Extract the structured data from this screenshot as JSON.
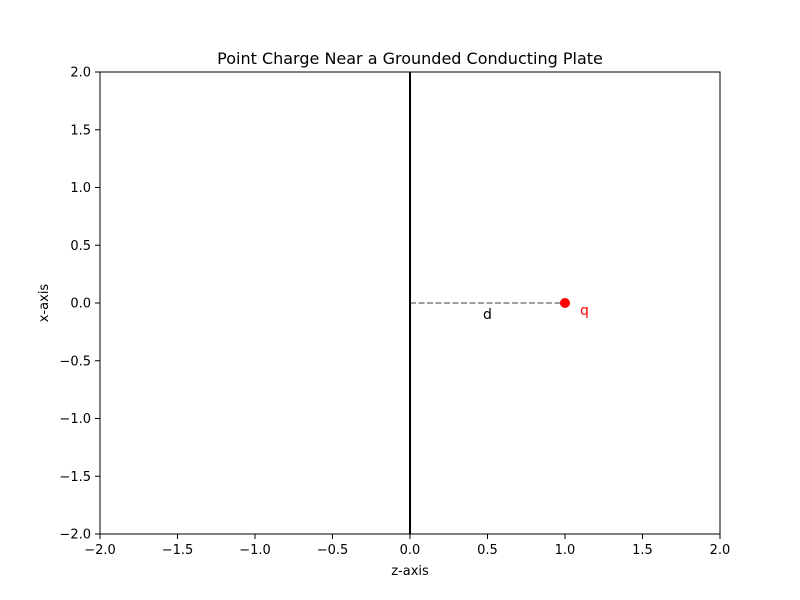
{
  "chart_data": {
    "type": "scatter",
    "title": "Point Charge Near a Grounded Conducting Plate",
    "xlabel": "z-axis",
    "ylabel": "x-axis",
    "xlim": [
      -2.0,
      2.0
    ],
    "ylim": [
      -2.0,
      2.0
    ],
    "grid": false,
    "xticks": [
      -2.0,
      -1.5,
      -1.0,
      -0.5,
      0.0,
      0.5,
      1.0,
      1.5,
      2.0
    ],
    "yticks": [
      -2.0,
      -1.5,
      -1.0,
      -0.5,
      0.0,
      0.5,
      1.0,
      1.5,
      2.0
    ],
    "xtick_labels": [
      "−2.0",
      "−1.5",
      "−1.0",
      "−0.5",
      "0.0",
      "0.5",
      "1.0",
      "1.5",
      "2.0"
    ],
    "ytick_labels": [
      "−2.0",
      "−1.5",
      "−1.0",
      "−0.5",
      "0.0",
      "0.5",
      "1.0",
      "1.5",
      "2.0"
    ],
    "plate": {
      "z": 0.0,
      "x_range": [
        -2.0,
        2.0
      ],
      "color": "#000000"
    },
    "charge": {
      "z": 1.0,
      "x": 0.0,
      "label": "q",
      "color": "#ff0000"
    },
    "distance": {
      "from": [
        0.0,
        0.0
      ],
      "to": [
        1.0,
        0.0
      ],
      "label": "d",
      "color": "#808080"
    }
  }
}
